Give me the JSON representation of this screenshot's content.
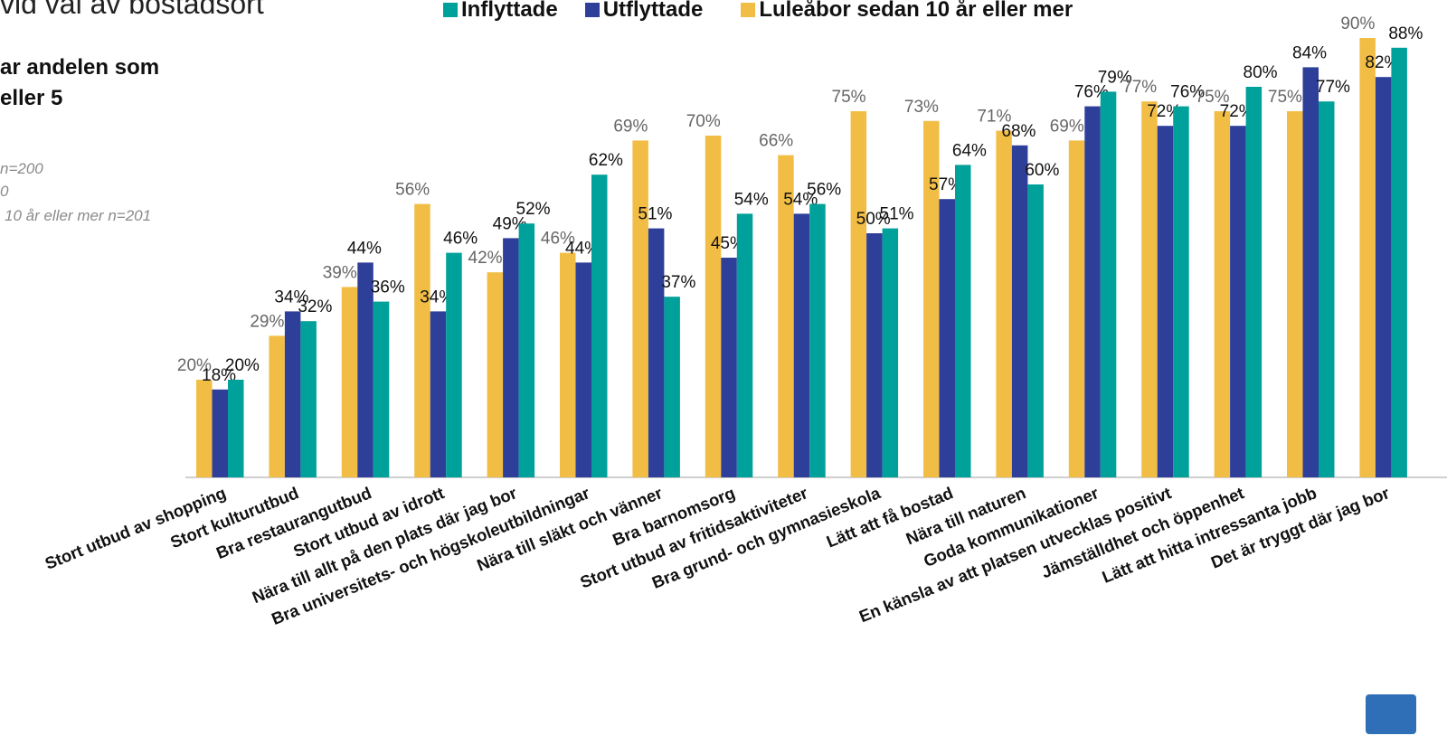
{
  "header": {
    "title": "vid val av bostadsort",
    "subtitle_lines": [
      "ar andelen som",
      "eller 5"
    ],
    "notes": [
      "n=200",
      "0",
      "10 år eller mer n=201"
    ]
  },
  "legend": [
    {
      "label": "Inflyttade",
      "color": "#00a19a"
    },
    {
      "label": "Utflyttade",
      "color": "#2e3f9a"
    },
    {
      "label": "Luleåbor sedan 10 år eller mer",
      "color": "#f2bd45"
    }
  ],
  "chart_data": {
    "type": "bar",
    "categories": [
      "Stort utbud av shopping",
      "Stort kulturutbud",
      "Bra restaurangutbud",
      "Stort utbud av idrott",
      "Nära till allt på den plats där jag bor",
      "Bra universitets- och högskoleutbildningar",
      "Nära till släkt och vänner",
      "Bra barnomsorg",
      "Stort utbud av fritidsaktiviteter",
      "Bra grund- och gymnasieskola",
      "Lätt att få bostad",
      "Nära till naturen",
      "Goda kommunikationer",
      "En känsla av att platsen utvecklas positivt",
      "Jämställdhet och öppenhet",
      "Lätt att hitta intressanta jobb",
      "Det är tryggt där jag bor"
    ],
    "series": [
      {
        "name": "Luleåbor sedan 10 år eller mer",
        "color": "#f2bd45",
        "label_color": "#666666",
        "values": [
          20,
          29,
          39,
          56,
          42,
          46,
          69,
          70,
          66,
          75,
          73,
          71,
          69,
          77,
          75,
          75,
          90
        ]
      },
      {
        "name": "Utflyttade",
        "color": "#2e3f9a",
        "label_color": "#111111",
        "values": [
          18,
          34,
          44,
          34,
          49,
          44,
          51,
          45,
          54,
          50,
          57,
          68,
          76,
          72,
          72,
          84,
          82
        ]
      },
      {
        "name": "Inflyttade",
        "color": "#00a19a",
        "label_color": "#111111",
        "values": [
          20,
          32,
          36,
          46,
          52,
          62,
          37,
          54,
          56,
          51,
          64,
          60,
          79,
          76,
          80,
          77,
          88
        ]
      }
    ],
    "ylim": [
      0,
      100
    ],
    "value_suffix": "%",
    "grid": false
  }
}
